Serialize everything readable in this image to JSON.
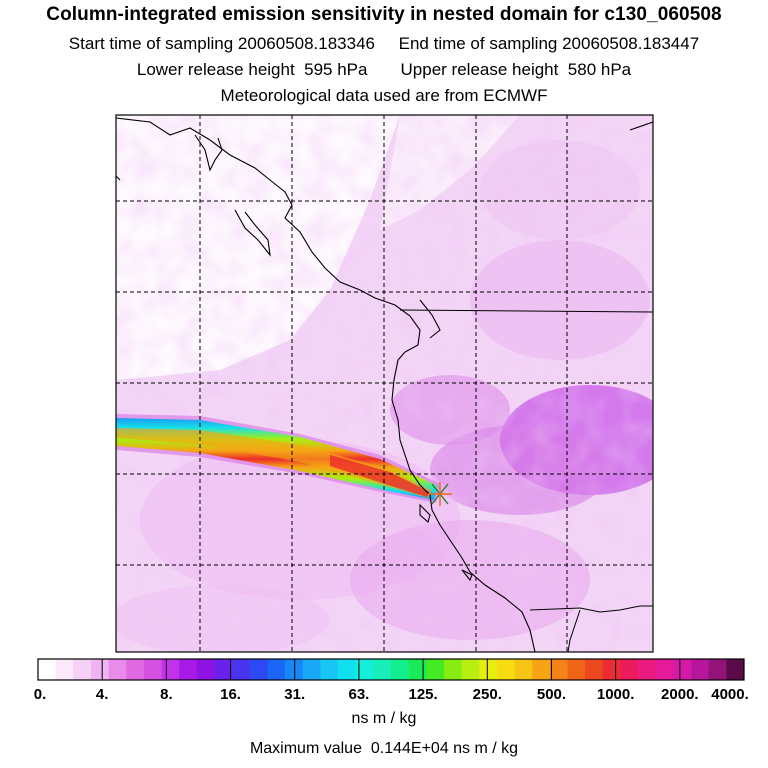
{
  "header": {
    "title": "Column-integrated emission sensitivity in nested domain for c130_060508",
    "sampling_line": "Start time of sampling 20060508.183346     End time of sampling 20060508.183447",
    "release_line": "Lower release height  595 hPa       Upper release height  580 hPa",
    "met_line": "Meteorological data used are from ECMWF"
  },
  "map": {
    "grid": "dashed",
    "receptor_marker": "x-cross"
  },
  "colorbar": {
    "ticks": [
      "0.",
      "4.",
      "8.",
      "16.",
      "31.",
      "63.",
      "125.",
      "250.",
      "500.",
      "1000.",
      "2000.",
      "4000."
    ],
    "colors": [
      "#ffffff",
      "#fbe8fb",
      "#f6d0f7",
      "#f0b4f2",
      "#e88be9",
      "#e06ae2",
      "#d552e0",
      "#c232ea",
      "#a81ae6",
      "#8f14e4",
      "#6a22ea",
      "#4a34f0",
      "#2e48f6",
      "#1a66f8",
      "#1888f8",
      "#1aa8f6",
      "#18c6f2",
      "#10e0ee",
      "#16eedc",
      "#18efb8",
      "#14ed8c",
      "#18ea58",
      "#46ea24",
      "#86ec12",
      "#b8ee10",
      "#e6ee10",
      "#f6dc10",
      "#f6c414",
      "#f6a414",
      "#f48418",
      "#f06418",
      "#ec4820",
      "#ec2c34",
      "#ec1c5c",
      "#ea1a80",
      "#e41a9a",
      "#d61aa8",
      "#b8169a",
      "#921478",
      "#5a0c4a"
    ],
    "units": "ns m / kg"
  },
  "max_value_text": "Maximum value  0.144E+04 ns m / kg"
}
